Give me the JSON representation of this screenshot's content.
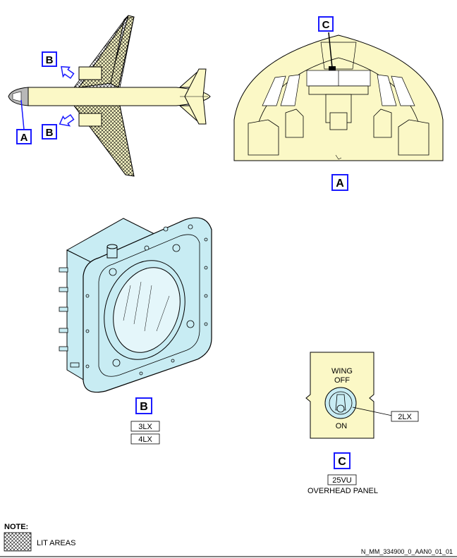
{
  "callouts": {
    "a_fuselage": "A",
    "b_upper": "B",
    "b_lower": "B",
    "c_cockpit": "C",
    "a_view": "A",
    "b_view": "B",
    "c_view": "C"
  },
  "light_view": {
    "labels": [
      "3LX",
      "4LX"
    ]
  },
  "switch_view": {
    "top_label_line1": "WING",
    "top_label_line2": "OFF",
    "bottom_label": "ON",
    "ref_label": "2LX",
    "panel_id": "25VU",
    "panel_name": "OVERHEAD PANEL"
  },
  "note": {
    "title": "NOTE:",
    "legend_text": "LIT AREAS"
  },
  "figure_id": "N_MM_334900_0_AAN0_01_01",
  "colors": {
    "aircraft_fill": "#fbf8c6",
    "light_fill": "#c8ecf3",
    "callout_blue": "#1a1aff"
  }
}
